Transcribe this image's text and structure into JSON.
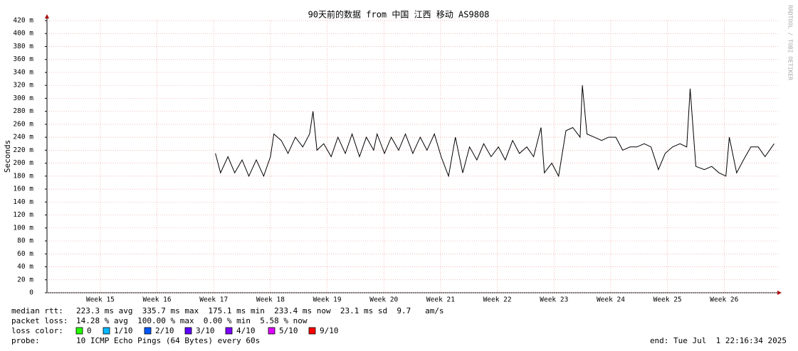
{
  "chart_data": {
    "type": "line",
    "title": "90天前的数据 from 中国 江西 移动 AS9808",
    "y_label": "Seconds",
    "watermark": "RRDTOOL / TOBI OETIKER",
    "xlim": [
      14.56,
      27.45
    ],
    "ylim": [
      0,
      0.42
    ],
    "grid": true,
    "xticks": [
      {
        "value": 15.5,
        "label": "Week 15"
      },
      {
        "value": 16.5,
        "label": "Week 16"
      },
      {
        "value": 17.5,
        "label": "Week 17"
      },
      {
        "value": 18.5,
        "label": "Week 18"
      },
      {
        "value": 19.5,
        "label": "Week 19"
      },
      {
        "value": 20.5,
        "label": "Week 20"
      },
      {
        "value": 21.5,
        "label": "Week 21"
      },
      {
        "value": 22.5,
        "label": "Week 22"
      },
      {
        "value": 23.5,
        "label": "Week 23"
      },
      {
        "value": 24.5,
        "label": "Week 24"
      },
      {
        "value": 25.5,
        "label": "Week 25"
      },
      {
        "value": 26.5,
        "label": "Week 26"
      }
    ],
    "yticks": [
      0,
      {
        "value": 0.02,
        "label": "20 m"
      },
      {
        "value": 0.04,
        "label": "40 m"
      },
      {
        "value": 0.06,
        "label": "60 m"
      },
      {
        "value": 0.08,
        "label": "80 m"
      },
      {
        "value": 0.1,
        "label": "100 m"
      },
      {
        "value": 0.12,
        "label": "120 m"
      },
      {
        "value": 0.14,
        "label": "140 m"
      },
      {
        "value": 0.16,
        "label": "160 m"
      },
      {
        "value": 0.18,
        "label": "180 m"
      },
      {
        "value": 0.2,
        "label": "200 m"
      },
      {
        "value": 0.22,
        "label": "220 m"
      },
      {
        "value": 0.24,
        "label": "240 m"
      },
      {
        "value": 0.26,
        "label": "260 m"
      },
      {
        "value": 0.28,
        "label": "280 m"
      },
      {
        "value": 0.3,
        "label": "300 m"
      },
      {
        "value": 0.32,
        "label": "320 m"
      },
      {
        "value": 0.34,
        "label": "340 m"
      },
      {
        "value": 0.36,
        "label": "360 m"
      },
      {
        "value": 0.38,
        "label": "380 m"
      },
      {
        "value": 0.4,
        "label": "400 m"
      },
      {
        "value": 0.42,
        "label": "420 m"
      }
    ],
    "x": [
      17.53,
      17.62,
      17.75,
      17.87,
      18.0,
      18.12,
      18.25,
      18.38,
      18.5,
      18.56,
      18.69,
      18.81,
      18.94,
      19.07,
      19.19,
      19.25,
      19.32,
      19.44,
      19.57,
      19.69,
      19.82,
      19.94,
      20.07,
      20.19,
      20.32,
      20.38,
      20.51,
      20.63,
      20.76,
      20.88,
      21.01,
      21.14,
      21.26,
      21.39,
      21.51,
      21.64,
      21.76,
      21.89,
      22.01,
      22.14,
      22.26,
      22.39,
      22.52,
      22.64,
      22.77,
      22.89,
      23.02,
      23.14,
      23.27,
      23.33,
      23.46,
      23.58,
      23.71,
      23.83,
      23.96,
      24.0,
      24.08,
      24.21,
      24.34,
      24.46,
      24.59,
      24.71,
      24.84,
      24.96,
      25.09,
      25.21,
      25.34,
      25.46,
      25.59,
      25.72,
      25.84,
      25.9,
      26.0,
      26.15,
      26.28,
      26.41,
      26.53,
      26.59,
      26.72,
      26.84,
      26.97,
      27.1,
      27.22,
      27.38
    ],
    "series": [
      {
        "name": "median rtt",
        "color": "#000000",
        "values": [
          0.215,
          0.185,
          0.21,
          0.185,
          0.205,
          0.18,
          0.205,
          0.18,
          0.21,
          0.245,
          0.235,
          0.215,
          0.24,
          0.225,
          0.245,
          0.28,
          0.22,
          0.23,
          0.21,
          0.24,
          0.215,
          0.245,
          0.21,
          0.24,
          0.22,
          0.245,
          0.215,
          0.24,
          0.22,
          0.245,
          0.215,
          0.24,
          0.22,
          0.245,
          0.21,
          0.18,
          0.24,
          0.185,
          0.225,
          0.205,
          0.23,
          0.21,
          0.225,
          0.205,
          0.235,
          0.215,
          0.225,
          0.21,
          0.255,
          0.185,
          0.2,
          0.18,
          0.25,
          0.255,
          0.24,
          0.32,
          0.245,
          0.24,
          0.235,
          0.24,
          0.24,
          0.22,
          0.225,
          0.225,
          0.23,
          0.225,
          0.19,
          0.215,
          0.225,
          0.23,
          0.225,
          0.315,
          0.195,
          0.19,
          0.195,
          0.185,
          0.18,
          0.24,
          0.185,
          0.205,
          0.225,
          0.225,
          0.21,
          0.23
        ]
      }
    ],
    "stats": [
      {
        "label": "median rtt:",
        "text": "223.3 ms avg  335.7 ms max  175.1 ms min  233.4 ms now  23.1 ms sd  9.7   am/s"
      },
      {
        "label": "packet loss:",
        "text": "14.28 % avg  100.00 % max  0.00 % min  5.58 % now"
      }
    ],
    "loss_color": {
      "label": "loss color:",
      "items": [
        {
          "name": "0",
          "color": "#26ff00"
        },
        {
          "name": "1/10",
          "color": "#00b8ff"
        },
        {
          "name": "2/10",
          "color": "#0059ff"
        },
        {
          "name": "3/10",
          "color": "#5e00ff"
        },
        {
          "name": "4/10",
          "color": "#7e00ff"
        },
        {
          "name": "5/10",
          "color": "#dd00ff"
        },
        {
          "name": "9/10",
          "color": "#ff0000"
        }
      ]
    },
    "probe": {
      "label": "probe:",
      "text": "10 ICMP Echo Pings (64 Bytes) every 60s"
    },
    "end": "end: Tue Jul  1 22:16:34 2025"
  }
}
